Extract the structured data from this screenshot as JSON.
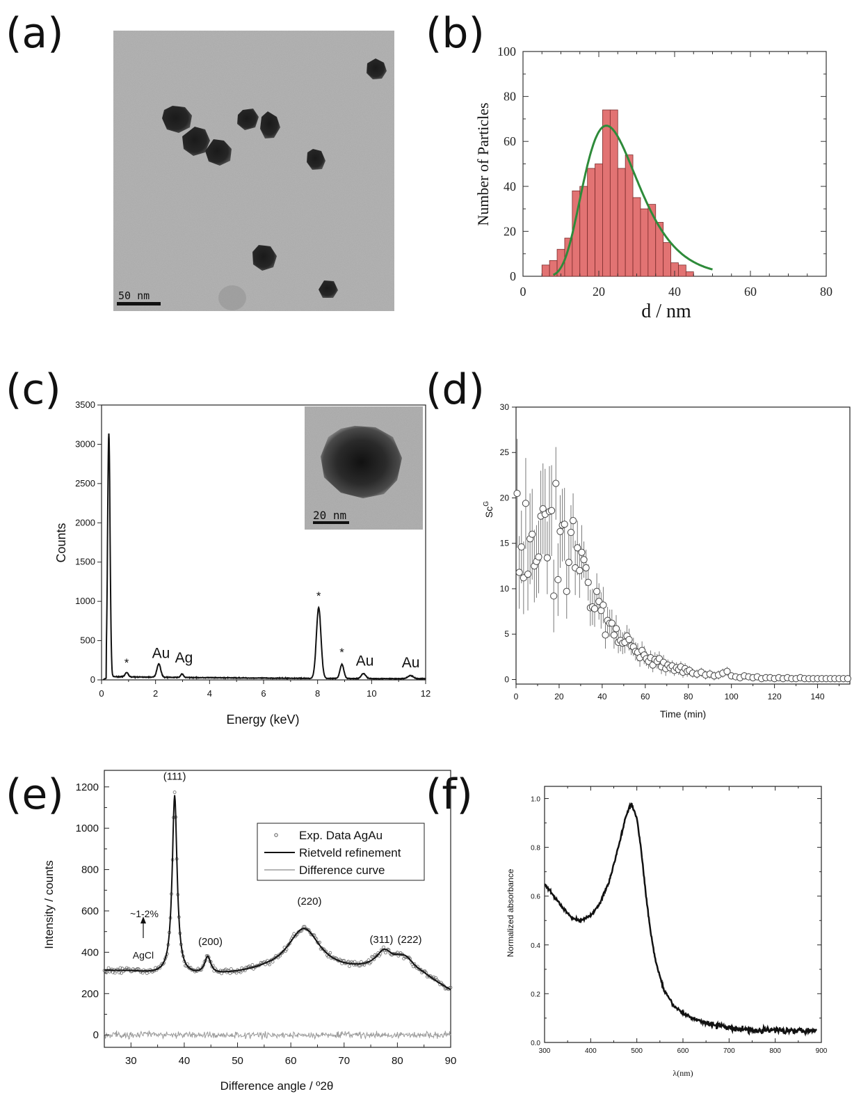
{
  "panels": {
    "a": "(a)",
    "b": "(b)",
    "c": "(c)",
    "d": "(d)",
    "e": "(e)",
    "f": "(f)"
  },
  "micrograph_a": {
    "scale_label": "50 nm"
  },
  "chart_data": [
    {
      "id": "b",
      "type": "bar",
      "xlabel": "d / nm",
      "ylabel": "Number of Particles",
      "xlim": [
        0,
        80
      ],
      "ylim": [
        0,
        100
      ],
      "xticks": [
        0,
        20,
        40,
        60,
        80
      ],
      "yticks": [
        0,
        20,
        40,
        60,
        80,
        100
      ],
      "bin_width": 2,
      "bins_start": [
        5,
        7,
        9,
        11,
        13,
        15,
        17,
        19,
        21,
        23,
        25,
        27,
        29,
        31,
        33,
        35,
        37,
        39,
        41,
        43
      ],
      "values": [
        5,
        7,
        12,
        17,
        38,
        40,
        48,
        50,
        74,
        74,
        48,
        54,
        35,
        30,
        32,
        24,
        15,
        6,
        5,
        2
      ],
      "bar_color": "#e27373",
      "fit_curve": {
        "type": "lognormal",
        "color": "#2e8b3a",
        "peak_x": 22,
        "peak_y": 67,
        "x_start": 8,
        "x_end": 50,
        "end_y": 3
      }
    },
    {
      "id": "c",
      "type": "line",
      "xlabel": "Energy (keV)",
      "ylabel": "Counts",
      "xlim": [
        0,
        12
      ],
      "ylim": [
        0,
        3500
      ],
      "xticks": [
        0,
        2,
        4,
        6,
        8,
        10,
        12
      ],
      "yticks": [
        0,
        500,
        1000,
        1500,
        2000,
        2500,
        3000,
        3500
      ],
      "baseline": 35,
      "peaks": [
        {
          "x": 0.27,
          "h": 3100,
          "w": 0.045
        },
        {
          "x": 0.93,
          "h": 55,
          "w": 0.06
        },
        {
          "x": 2.12,
          "h": 170,
          "w": 0.07
        },
        {
          "x": 2.98,
          "h": 45,
          "w": 0.05
        },
        {
          "x": 8.04,
          "h": 900,
          "w": 0.085
        },
        {
          "x": 8.9,
          "h": 180,
          "w": 0.07
        },
        {
          "x": 9.7,
          "h": 65,
          "w": 0.08
        },
        {
          "x": 11.44,
          "h": 40,
          "w": 0.1
        }
      ],
      "annotations": [
        {
          "text": "*",
          "x": 0.93,
          "y": 170
        },
        {
          "text": "Au",
          "x": 2.2,
          "y": 280
        },
        {
          "text": "Ag",
          "x": 3.05,
          "y": 220
        },
        {
          "text": "*",
          "x": 8.04,
          "y": 1020
        },
        {
          "text": "*",
          "x": 8.9,
          "y": 300
        },
        {
          "text": "Au",
          "x": 9.75,
          "y": 180
        },
        {
          "text": "Au",
          "x": 11.45,
          "y": 160
        }
      ],
      "inset_scale_label": "20 nm"
    },
    {
      "id": "d",
      "type": "scatter",
      "xlabel": "Time (min)",
      "ylabel": "Sc",
      "ylabel_superscript": "G",
      "xlim": [
        0,
        155
      ],
      "ylim": [
        -0.5,
        30
      ],
      "xticks": [
        0,
        20,
        40,
        60,
        80,
        100,
        120,
        140
      ],
      "yticks": [
        0,
        5,
        10,
        15,
        20,
        25,
        30
      ],
      "points": [
        [
          0.5,
          20.5,
          6
        ],
        [
          1.5,
          11.8,
          4
        ],
        [
          2.5,
          14.6,
          4
        ],
        [
          3.5,
          11.2,
          4
        ],
        [
          4.5,
          19.4,
          5
        ],
        [
          5.5,
          11.6,
          4
        ],
        [
          6.5,
          15.5,
          5
        ],
        [
          7.5,
          16.0,
          5
        ],
        [
          8.5,
          12.5,
          4
        ],
        [
          9.5,
          13.0,
          4
        ],
        [
          10.5,
          13.5,
          4
        ],
        [
          11.5,
          18.0,
          5
        ],
        [
          12.5,
          18.8,
          5
        ],
        [
          13.5,
          18.2,
          5
        ],
        [
          14.5,
          13.4,
          4
        ],
        [
          15.5,
          18.5,
          5
        ],
        [
          16.5,
          18.6,
          5
        ],
        [
          17.5,
          9.2,
          4
        ],
        [
          18.5,
          21.6,
          4
        ],
        [
          19.5,
          11.0,
          4
        ],
        [
          20.5,
          16.3,
          4
        ],
        [
          21.5,
          17.0,
          4
        ],
        [
          22.5,
          17.1,
          4
        ],
        [
          23.5,
          9.7,
          3
        ],
        [
          24.5,
          12.9,
          3
        ],
        [
          25.5,
          16.2,
          3
        ],
        [
          26.5,
          17.5,
          3
        ],
        [
          27.5,
          12.3,
          3
        ],
        [
          28.5,
          14.5,
          3
        ],
        [
          29.5,
          12.0,
          3
        ],
        [
          30.5,
          14.0,
          3
        ],
        [
          31.5,
          13.2,
          2
        ],
        [
          32.5,
          12.3,
          2
        ],
        [
          33.5,
          10.7,
          2
        ],
        [
          34.5,
          7.9,
          2
        ],
        [
          35.5,
          8.0,
          2
        ],
        [
          36.5,
          7.8,
          2
        ],
        [
          37.5,
          9.7,
          2
        ],
        [
          38.5,
          8.6,
          2
        ],
        [
          39.5,
          7.6,
          2
        ],
        [
          40.5,
          8.2,
          2
        ],
        [
          41.5,
          4.9,
          1.5
        ],
        [
          42.5,
          6.5,
          1.5
        ],
        [
          43.5,
          6.2,
          1.5
        ],
        [
          44.5,
          6.2,
          1.5
        ],
        [
          45.5,
          4.9,
          1.5
        ],
        [
          46.5,
          5.6,
          1.5
        ],
        [
          47.5,
          4.1,
          1.2
        ],
        [
          48.5,
          4.3,
          1.2
        ],
        [
          49.5,
          4.0,
          1.2
        ],
        [
          50.5,
          4.1,
          1.2
        ],
        [
          51.5,
          4.8,
          1.2
        ],
        [
          52.5,
          4.4,
          1.2
        ],
        [
          53.5,
          3.7,
          1.0
        ],
        [
          54.5,
          3.6,
          1.0
        ],
        [
          55.5,
          3.1,
          1.0
        ],
        [
          56.5,
          3.0,
          1.0
        ],
        [
          57.5,
          2.4,
          1.0
        ],
        [
          58.5,
          3.2,
          1.0
        ],
        [
          59.5,
          2.7,
          1.0
        ],
        [
          60.5,
          2.3,
          0.8
        ],
        [
          61.5,
          2.0,
          0.8
        ],
        [
          62.5,
          2.4,
          0.8
        ],
        [
          63.5,
          1.6,
          0.8
        ],
        [
          64.5,
          2.2,
          0.8
        ],
        [
          65.5,
          2.0,
          0.8
        ],
        [
          66.5,
          2.3,
          0.8
        ],
        [
          67.5,
          1.4,
          0.8
        ],
        [
          68.5,
          1.9,
          0.8
        ],
        [
          69.5,
          1.2,
          0.8
        ],
        [
          70.5,
          1.6,
          0.6
        ],
        [
          71.5,
          1.3,
          0.6
        ],
        [
          72.5,
          1.5,
          0.6
        ],
        [
          73.5,
          1.0,
          0.6
        ],
        [
          74.5,
          1.3,
          0.6
        ],
        [
          75.5,
          1.1,
          0.6
        ],
        [
          76.5,
          1.4,
          0.6
        ],
        [
          77.5,
          0.8,
          0.6
        ],
        [
          78.5,
          1.2,
          0.6
        ],
        [
          79.5,
          0.9,
          0.6
        ],
        [
          80.5,
          1.0,
          0.5
        ],
        [
          82,
          0.7,
          0.5
        ],
        [
          84,
          0.6,
          0.5
        ],
        [
          86,
          0.8,
          0.5
        ],
        [
          88,
          0.5,
          0.5
        ],
        [
          90,
          0.6,
          0.5
        ],
        [
          92,
          0.4,
          0.5
        ],
        [
          94,
          0.5,
          0.5
        ],
        [
          96,
          0.7,
          0.5
        ],
        [
          98,
          0.9,
          0.5
        ],
        [
          100,
          0.4,
          0.4
        ],
        [
          102,
          0.3,
          0.4
        ],
        [
          104,
          0.2,
          0.4
        ],
        [
          106,
          0.4,
          0.4
        ],
        [
          108,
          0.3,
          0.4
        ],
        [
          110,
          0.2,
          0.4
        ],
        [
          112,
          0.3,
          0.4
        ],
        [
          114,
          0.1,
          0.4
        ],
        [
          116,
          0.2,
          0.4
        ],
        [
          118,
          0.2,
          0.4
        ],
        [
          120,
          0.1,
          0.4
        ],
        [
          122,
          0.2,
          0.4
        ],
        [
          124,
          0.1,
          0.4
        ],
        [
          126,
          0.2,
          0.4
        ],
        [
          128,
          0.1,
          0.4
        ],
        [
          130,
          0.1,
          0.4
        ],
        [
          132,
          0.2,
          0.4
        ],
        [
          134,
          0.1,
          0.4
        ],
        [
          136,
          0.1,
          0.4
        ],
        [
          138,
          0.1,
          0.4
        ],
        [
          140,
          0.1,
          0.4
        ],
        [
          142,
          0.1,
          0.4
        ],
        [
          144,
          0.1,
          0.4
        ],
        [
          146,
          0.1,
          0.4
        ],
        [
          148,
          0.1,
          0.4
        ],
        [
          150,
          0.1,
          0.4
        ],
        [
          152,
          0.1,
          0.4
        ],
        [
          154,
          0.1,
          0.4
        ]
      ]
    },
    {
      "id": "e",
      "type": "line",
      "xlabel": "Difference angle / º2θ",
      "ylabel": "Intensity / counts",
      "xlim": [
        25,
        90
      ],
      "ylim": [
        -60,
        1280
      ],
      "xticks": [
        30,
        40,
        50,
        60,
        70,
        80,
        90
      ],
      "yticks": [
        0,
        200,
        400,
        600,
        800,
        1000,
        1200
      ],
      "background": [
        [
          25,
          310
        ],
        [
          30,
          305
        ],
        [
          35,
          290
        ],
        [
          40,
          280
        ],
        [
          45,
          280
        ],
        [
          50,
          290
        ],
        [
          55,
          300
        ],
        [
          60,
          300
        ],
        [
          65,
          295
        ],
        [
          70,
          300
        ],
        [
          75,
          310
        ],
        [
          80,
          320
        ],
        [
          85,
          280
        ],
        [
          90,
          210
        ]
      ],
      "peaks": [
        {
          "x": 38.2,
          "h": 870,
          "w": 0.55
        },
        {
          "x": 44.4,
          "h": 85,
          "w": 0.7
        },
        {
          "x": 62.5,
          "h": 215,
          "w": 3.8
        },
        {
          "x": 77.5,
          "h": 75,
          "w": 1.8
        },
        {
          "x": 81.5,
          "h": 55,
          "w": 2.0
        }
      ],
      "legend": [
        "Exp. Data AgAu",
        "Rietveld refinement",
        "Difference curve"
      ],
      "legend_position": "top-right",
      "annotations": [
        {
          "text": "(111)",
          "x": 38.2,
          "y": 1235
        },
        {
          "text": "(200)",
          "x": 44.9,
          "y": 435
        },
        {
          "text": "(220)",
          "x": 63.5,
          "y": 630
        },
        {
          "text": "(311)",
          "x": 77.0,
          "y": 445
        },
        {
          "text": "(222)",
          "x": 82.3,
          "y": 445
        },
        {
          "text": "~1-2%",
          "x": 32.5,
          "y": 570
        },
        {
          "text": "AgCl",
          "x": 32.3,
          "y": 370
        }
      ]
    },
    {
      "id": "f",
      "type": "line",
      "xlabel": "λ(nm)",
      "ylabel": "Normalized absorbance",
      "xlim": [
        300,
        900
      ],
      "ylim": [
        0,
        1.05
      ],
      "xticks": [
        300,
        400,
        500,
        600,
        700,
        800,
        900
      ],
      "yticks": [
        0.0,
        0.2,
        0.4,
        0.6,
        0.8,
        1.0
      ],
      "points": [
        [
          300,
          0.65
        ],
        [
          320,
          0.6
        ],
        [
          340,
          0.55
        ],
        [
          360,
          0.51
        ],
        [
          380,
          0.5
        ],
        [
          400,
          0.52
        ],
        [
          420,
          0.57
        ],
        [
          440,
          0.66
        ],
        [
          460,
          0.8
        ],
        [
          475,
          0.92
        ],
        [
          488,
          0.98
        ],
        [
          500,
          0.92
        ],
        [
          510,
          0.78
        ],
        [
          520,
          0.6
        ],
        [
          530,
          0.45
        ],
        [
          540,
          0.34
        ],
        [
          550,
          0.27
        ],
        [
          560,
          0.21
        ],
        [
          580,
          0.15
        ],
        [
          600,
          0.12
        ],
        [
          620,
          0.1
        ],
        [
          650,
          0.08
        ],
        [
          700,
          0.06
        ],
        [
          750,
          0.05
        ],
        [
          800,
          0.05
        ],
        [
          850,
          0.05
        ],
        [
          890,
          0.05
        ]
      ]
    }
  ]
}
